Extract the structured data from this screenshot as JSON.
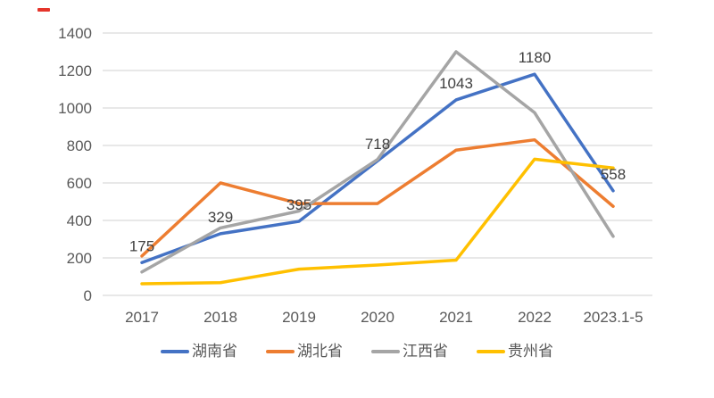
{
  "page": {
    "background": "#ffffff"
  },
  "artifact": {
    "label": "red-dash",
    "color": "#e5352b"
  },
  "chart_data": {
    "type": "line",
    "title": "",
    "xlabel": "",
    "ylabel": "",
    "categories": [
      "2017",
      "2018",
      "2019",
      "2020",
      "2021",
      "2022",
      "2023.1-5"
    ],
    "series": [
      {
        "name": "湖南省",
        "color": "#4472C4",
        "values": [
          175,
          329,
          395,
          718,
          1043,
          1180,
          558
        ],
        "data_labels": true
      },
      {
        "name": "湖北省",
        "color": "#ED7D31",
        "values": [
          210,
          600,
          490,
          490,
          775,
          830,
          475
        ],
        "data_labels": false
      },
      {
        "name": "江西省",
        "color": "#A5A5A5",
        "values": [
          125,
          360,
          450,
          725,
          1300,
          975,
          315
        ],
        "data_labels": false
      },
      {
        "name": "贵州省",
        "color": "#FFC000",
        "values": [
          62,
          68,
          140,
          162,
          188,
          727,
          680
        ],
        "data_labels": false
      }
    ],
    "data_label_values": [
      "175",
      "329",
      "395",
      "718",
      "1043",
      "1180",
      "558"
    ],
    "ylim": [
      0,
      1400
    ],
    "y_ticks": [
      0,
      200,
      400,
      600,
      800,
      1000,
      1200,
      1400
    ],
    "grid": true,
    "gridline_color": "#D9D9D9",
    "axis_text_color": "#595959",
    "data_label_color": "#404040",
    "legend_position": "bottom"
  }
}
